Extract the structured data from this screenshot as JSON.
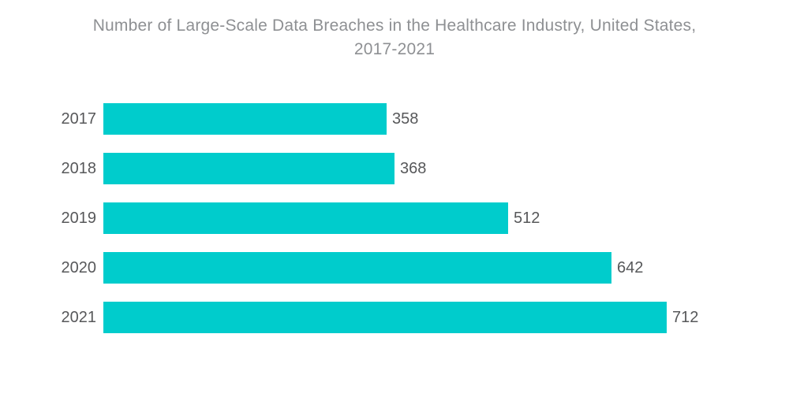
{
  "title": {
    "line1": "Number of Large-Scale Data Breaches in the Healthcare Industry, United States,",
    "line2": "2017-2021"
  },
  "colors": {
    "bar": "#00cccc",
    "title_text": "#8e9093",
    "label_text": "#57585a",
    "background": "#ffffff"
  },
  "chart_data": {
    "type": "bar",
    "orientation": "horizontal",
    "title": "Number of Large-Scale Data Breaches in the Healthcare Industry, United States, 2017-2021",
    "categories": [
      "2017",
      "2018",
      "2019",
      "2020",
      "2021"
    ],
    "values": [
      358,
      368,
      512,
      642,
      712
    ],
    "value_labels": [
      358,
      368,
      512,
      642,
      712
    ],
    "xlabel": "",
    "ylabel": "",
    "xlim": [
      0,
      712
    ],
    "grid": false,
    "legend": "none",
    "bar_color": "#00cccc"
  }
}
